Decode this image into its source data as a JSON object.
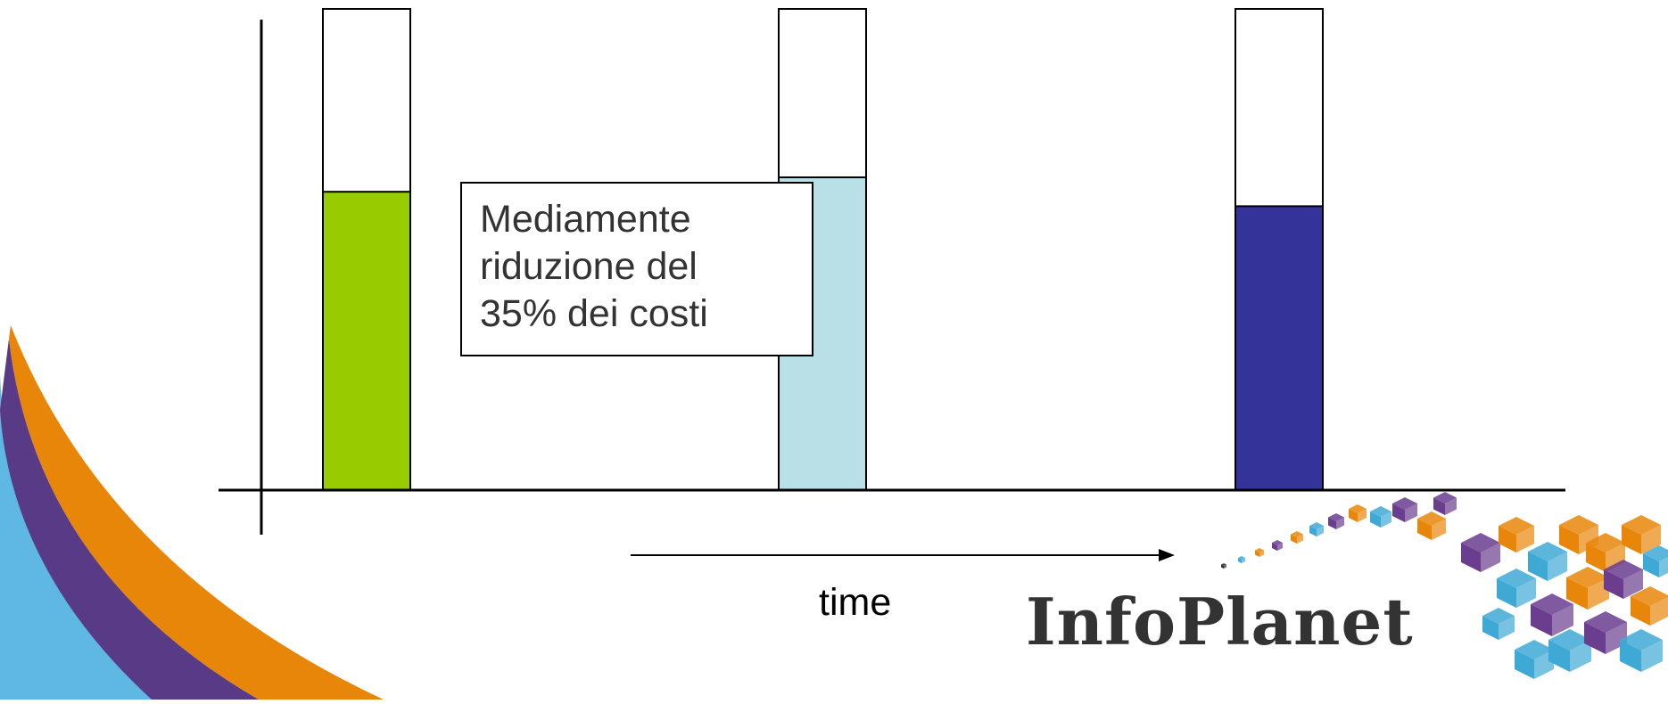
{
  "chart_data": {
    "type": "bar",
    "categories": [
      "",
      "",
      ""
    ],
    "series": [
      {
        "values": [
          62,
          65,
          59
        ]
      }
    ],
    "ylim": [
      0,
      100
    ],
    "bar_colors": [
      "#99cc00",
      "#b8e0e6",
      "#333399"
    ],
    "callout": [
      "Mediamente",
      "riduzione del",
      "35% dei costi"
    ],
    "xlabel": "time",
    "grid": false
  },
  "logo": {
    "text": "InfoPlanet",
    "colors": [
      "#e8860a",
      "#6a3d8f",
      "#3fa9d6",
      "#2e2e2e"
    ]
  }
}
